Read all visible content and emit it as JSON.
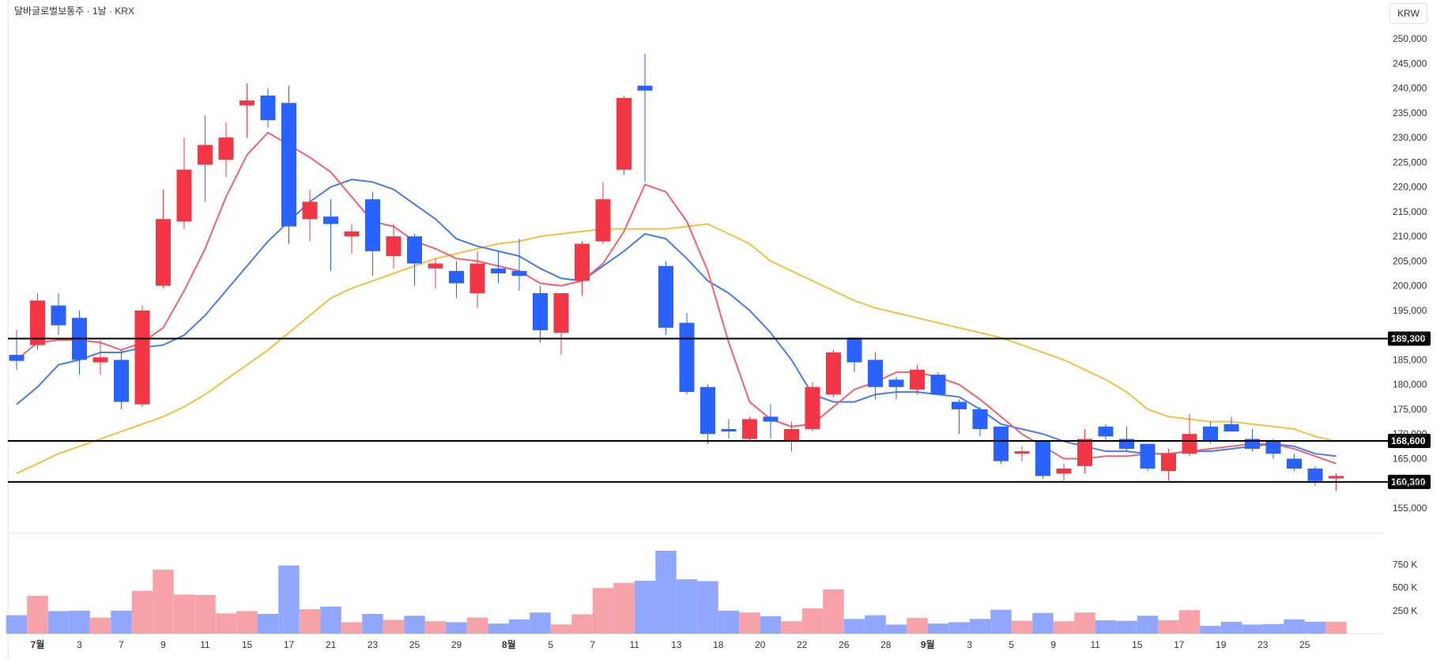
{
  "header": {
    "title": "달바글로벌보통주 · 1날 · KRX",
    "currency": "KRW"
  },
  "chart_data": {
    "type": "candlestick",
    "colors": {
      "up": "#f23645",
      "down": "#2962ff",
      "vol_up": "#f7a1a9",
      "vol_down": "#91a7ff",
      "ma5": "#f06272",
      "ma10": "#4a7be6",
      "ma20": "#f4c044",
      "hline": "#000000"
    },
    "price_axis": {
      "min": 155000,
      "max": 250000,
      "ticks": [
        "250,000",
        "245,000",
        "240,000",
        "235,000",
        "230,000",
        "225,000",
        "220,000",
        "215,000",
        "210,000",
        "205,000",
        "200,000",
        "195,000",
        "190,000",
        "185,000",
        "180,000",
        "175,000",
        "170,000",
        "165,000",
        "160,000",
        "155,000"
      ]
    },
    "volume_axis": {
      "ticks": [
        {
          "label": "750 K",
          "value": 750000
        },
        {
          "label": "500 K",
          "value": 500000
        },
        {
          "label": "250 K",
          "value": 250000
        }
      ]
    },
    "x_labels": [
      {
        "i": 1,
        "label": "7월",
        "bold": true
      },
      {
        "i": 3,
        "label": "3"
      },
      {
        "i": 5,
        "label": "7"
      },
      {
        "i": 7,
        "label": "9"
      },
      {
        "i": 9,
        "label": "11"
      },
      {
        "i": 11,
        "label": "15"
      },
      {
        "i": 13,
        "label": "17"
      },
      {
        "i": 15,
        "label": "21"
      },
      {
        "i": 17,
        "label": "23"
      },
      {
        "i": 19,
        "label": "25"
      },
      {
        "i": 21,
        "label": "29"
      },
      {
        "i": 23.5,
        "label": "8월",
        "bold": true
      },
      {
        "i": 25.5,
        "label": "5"
      },
      {
        "i": 27.5,
        "label": "7"
      },
      {
        "i": 29.5,
        "label": "11"
      },
      {
        "i": 31.5,
        "label": "13"
      },
      {
        "i": 33.5,
        "label": "18"
      },
      {
        "i": 35.5,
        "label": "20"
      },
      {
        "i": 37.5,
        "label": "22"
      },
      {
        "i": 39.5,
        "label": "26"
      },
      {
        "i": 41.5,
        "label": "28"
      },
      {
        "i": 43.5,
        "label": "9월",
        "bold": true
      },
      {
        "i": 45.5,
        "label": "3"
      },
      {
        "i": 47.5,
        "label": "5"
      },
      {
        "i": 49.5,
        "label": "9"
      },
      {
        "i": 51.5,
        "label": "11"
      },
      {
        "i": 53.5,
        "label": "15"
      },
      {
        "i": 55.5,
        "label": "17"
      },
      {
        "i": 57.5,
        "label": "19"
      },
      {
        "i": 59.5,
        "label": "23"
      },
      {
        "i": 61.5,
        "label": "25"
      }
    ],
    "horizontal_lines": [
      {
        "value": 189300,
        "label": "189,300"
      },
      {
        "value": 168600,
        "label": "168,600"
      },
      {
        "value": 160300,
        "label": "160,300"
      }
    ],
    "candles": [
      {
        "o": 186000,
        "h": 191000,
        "l": 183000,
        "c": 184800,
        "v": 200000
      },
      {
        "o": 188000,
        "h": 198500,
        "l": 187000,
        "c": 197000,
        "v": 410000
      },
      {
        "o": 196000,
        "h": 198500,
        "l": 190000,
        "c": 192000,
        "v": 245000
      },
      {
        "o": 193500,
        "h": 195000,
        "l": 182000,
        "c": 185000,
        "v": 250000
      },
      {
        "o": 184500,
        "h": 189000,
        "l": 182000,
        "c": 185500,
        "v": 175000
      },
      {
        "o": 185000,
        "h": 187000,
        "l": 175000,
        "c": 176500,
        "v": 250000
      },
      {
        "o": 176000,
        "h": 196000,
        "l": 175500,
        "c": 195000,
        "v": 465000
      },
      {
        "o": 200000,
        "h": 219500,
        "l": 199500,
        "c": 213500,
        "v": 695000
      },
      {
        "o": 213000,
        "h": 230000,
        "l": 211500,
        "c": 223500,
        "v": 425000
      },
      {
        "o": 224500,
        "h": 234500,
        "l": 217000,
        "c": 228500,
        "v": 420000
      },
      {
        "o": 225500,
        "h": 233000,
        "l": 222000,
        "c": 230000,
        "v": 220000
      },
      {
        "o": 236500,
        "h": 241000,
        "l": 230000,
        "c": 237500,
        "v": 245000
      },
      {
        "o": 238500,
        "h": 240000,
        "l": 232000,
        "c": 233500,
        "v": 215000
      },
      {
        "o": 237000,
        "h": 240500,
        "l": 208500,
        "c": 212000,
        "v": 740000
      },
      {
        "o": 213500,
        "h": 219500,
        "l": 209000,
        "c": 217000,
        "v": 265000
      },
      {
        "o": 214000,
        "h": 217500,
        "l": 203000,
        "c": 212500,
        "v": 295000
      },
      {
        "o": 210000,
        "h": 212500,
        "l": 206500,
        "c": 211000,
        "v": 125000
      },
      {
        "o": 217500,
        "h": 219000,
        "l": 202000,
        "c": 207000,
        "v": 215000
      },
      {
        "o": 206000,
        "h": 212500,
        "l": 203500,
        "c": 210000,
        "v": 150000
      },
      {
        "o": 210000,
        "h": 210500,
        "l": 200000,
        "c": 204500,
        "v": 195000
      },
      {
        "o": 203500,
        "h": 205500,
        "l": 199500,
        "c": 204500,
        "v": 135000
      },
      {
        "o": 203000,
        "h": 205000,
        "l": 197500,
        "c": 200500,
        "v": 125000
      },
      {
        "o": 198500,
        "h": 207000,
        "l": 195500,
        "c": 204500,
        "v": 175000
      },
      {
        "o": 203500,
        "h": 207000,
        "l": 200500,
        "c": 202500,
        "v": 110000
      },
      {
        "o": 203000,
        "h": 209500,
        "l": 199000,
        "c": 202000,
        "v": 155000
      },
      {
        "o": 198500,
        "h": 200000,
        "l": 188500,
        "c": 191000,
        "v": 230000
      },
      {
        "o": 190500,
        "h": 198000,
        "l": 186000,
        "c": 198500,
        "v": 100000
      },
      {
        "o": 201000,
        "h": 209000,
        "l": 198000,
        "c": 208500,
        "v": 210000
      },
      {
        "o": 209000,
        "h": 221000,
        "l": 208500,
        "c": 217500,
        "v": 495000
      },
      {
        "o": 223500,
        "h": 238500,
        "l": 222500,
        "c": 238000,
        "v": 550000
      },
      {
        "o": 240500,
        "h": 247000,
        "l": 221000,
        "c": 239500,
        "v": 575000
      },
      {
        "o": 204000,
        "h": 205000,
        "l": 190000,
        "c": 191500,
        "v": 900000
      },
      {
        "o": 192500,
        "h": 194500,
        "l": 178000,
        "c": 178500,
        "v": 590000
      },
      {
        "o": 179500,
        "h": 180000,
        "l": 168000,
        "c": 170000,
        "v": 570000
      },
      {
        "o": 171000,
        "h": 173000,
        "l": 169000,
        "c": 170500,
        "v": 250000
      },
      {
        "o": 169000,
        "h": 173500,
        "l": 168500,
        "c": 173000,
        "v": 230000
      },
      {
        "o": 173500,
        "h": 176000,
        "l": 169000,
        "c": 172500,
        "v": 190000
      },
      {
        "o": 168500,
        "h": 172500,
        "l": 166500,
        "c": 171000,
        "v": 135000
      },
      {
        "o": 171000,
        "h": 180500,
        "l": 170500,
        "c": 179500,
        "v": 275000
      },
      {
        "o": 178000,
        "h": 187000,
        "l": 177500,
        "c": 186500,
        "v": 480000
      },
      {
        "o": 189500,
        "h": 189500,
        "l": 182500,
        "c": 184500,
        "v": 160000
      },
      {
        "o": 185000,
        "h": 186500,
        "l": 177000,
        "c": 179500,
        "v": 200000
      },
      {
        "o": 181000,
        "h": 181500,
        "l": 177000,
        "c": 179500,
        "v": 100000
      },
      {
        "o": 179000,
        "h": 184000,
        "l": 178000,
        "c": 183000,
        "v": 170000
      },
      {
        "o": 182000,
        "h": 182500,
        "l": 178000,
        "c": 178000,
        "v": 110000
      },
      {
        "o": 176500,
        "h": 177000,
        "l": 170000,
        "c": 175000,
        "v": 125000
      },
      {
        "o": 175000,
        "h": 175500,
        "l": 169500,
        "c": 171000,
        "v": 160000
      },
      {
        "o": 171500,
        "h": 171500,
        "l": 164000,
        "c": 164500,
        "v": 260000
      },
      {
        "o": 166000,
        "h": 167500,
        "l": 164500,
        "c": 166500,
        "v": 140000
      },
      {
        "o": 168500,
        "h": 168500,
        "l": 161000,
        "c": 161500,
        "v": 225000
      },
      {
        "o": 162000,
        "h": 164000,
        "l": 160500,
        "c": 163000,
        "v": 135000
      },
      {
        "o": 163500,
        "h": 171000,
        "l": 162000,
        "c": 169000,
        "v": 230000
      },
      {
        "o": 171500,
        "h": 172000,
        "l": 168500,
        "c": 169500,
        "v": 145000
      },
      {
        "o": 169000,
        "h": 171500,
        "l": 166500,
        "c": 167000,
        "v": 140000
      },
      {
        "o": 168000,
        "h": 168000,
        "l": 162500,
        "c": 163000,
        "v": 195000
      },
      {
        "o": 162500,
        "h": 167000,
        "l": 160500,
        "c": 166000,
        "v": 145000
      },
      {
        "o": 166000,
        "h": 174000,
        "l": 165500,
        "c": 170000,
        "v": 255000
      },
      {
        "o": 171500,
        "h": 172500,
        "l": 168000,
        "c": 168500,
        "v": 85000
      },
      {
        "o": 172000,
        "h": 173500,
        "l": 170500,
        "c": 170500,
        "v": 130000
      },
      {
        "o": 169000,
        "h": 171000,
        "l": 166500,
        "c": 167000,
        "v": 100000
      },
      {
        "o": 168500,
        "h": 169000,
        "l": 165000,
        "c": 166000,
        "v": 105000
      },
      {
        "o": 165000,
        "h": 166000,
        "l": 162500,
        "c": 163000,
        "v": 155000
      },
      {
        "o": 163000,
        "h": 163500,
        "l": 159500,
        "c": 160500,
        "v": 130000
      },
      {
        "o": 161000,
        "h": 162000,
        "l": 158500,
        "c": 161500,
        "v": 130000
      }
    ],
    "ma5": [
      185000,
      188500,
      189000,
      189000,
      188500,
      187000,
      188500,
      191500,
      199000,
      207500,
      218000,
      226500,
      231000,
      228500,
      226000,
      223000,
      218000,
      213000,
      212000,
      209000,
      207500,
      205500,
      205000,
      204000,
      203000,
      200500,
      200000,
      201000,
      204500,
      211000,
      220500,
      219000,
      213000,
      203000,
      188500,
      176500,
      173000,
      171500,
      172000,
      175500,
      179000,
      180500,
      182500,
      182500,
      181500,
      180000,
      177000,
      173500,
      170000,
      167500,
      165000,
      165000,
      165500,
      165500,
      166000,
      166000,
      166500,
      167000,
      167500,
      168000,
      168000,
      167000,
      165500,
      164000
    ],
    "ma10": [
      176000,
      179500,
      184000,
      185000,
      186500,
      186500,
      187500,
      188000,
      190000,
      194000,
      199000,
      204000,
      209000,
      213000,
      217000,
      220000,
      221500,
      221000,
      219500,
      216500,
      213500,
      209500,
      208000,
      207000,
      206000,
      203500,
      201500,
      201000,
      204000,
      207000,
      210500,
      209500,
      205500,
      201000,
      198500,
      195000,
      190500,
      185000,
      178000,
      176500,
      176500,
      178000,
      178500,
      178500,
      178000,
      177500,
      175000,
      172000,
      171000,
      170000,
      168500,
      167500,
      166500,
      166500,
      166000,
      166000,
      166500,
      166500,
      167000,
      167500,
      168000,
      167500,
      166000,
      165500
    ],
    "ma20": [
      162000,
      164000,
      166000,
      167500,
      169000,
      170500,
      172000,
      173500,
      175500,
      178000,
      181000,
      184000,
      187000,
      190500,
      194000,
      197500,
      199500,
      201000,
      202500,
      204000,
      205500,
      206500,
      207500,
      208500,
      209000,
      210000,
      210500,
      211000,
      211500,
      211500,
      211500,
      211500,
      212000,
      212500,
      210500,
      208500,
      205000,
      203000,
      201000,
      199000,
      197000,
      195500,
      194500,
      193500,
      192500,
      191500,
      190500,
      189500,
      188000,
      186500,
      185000,
      183000,
      181000,
      178500,
      175000,
      173500,
      173000,
      172500,
      172500,
      172000,
      171500,
      171000,
      169500,
      168500
    ]
  }
}
